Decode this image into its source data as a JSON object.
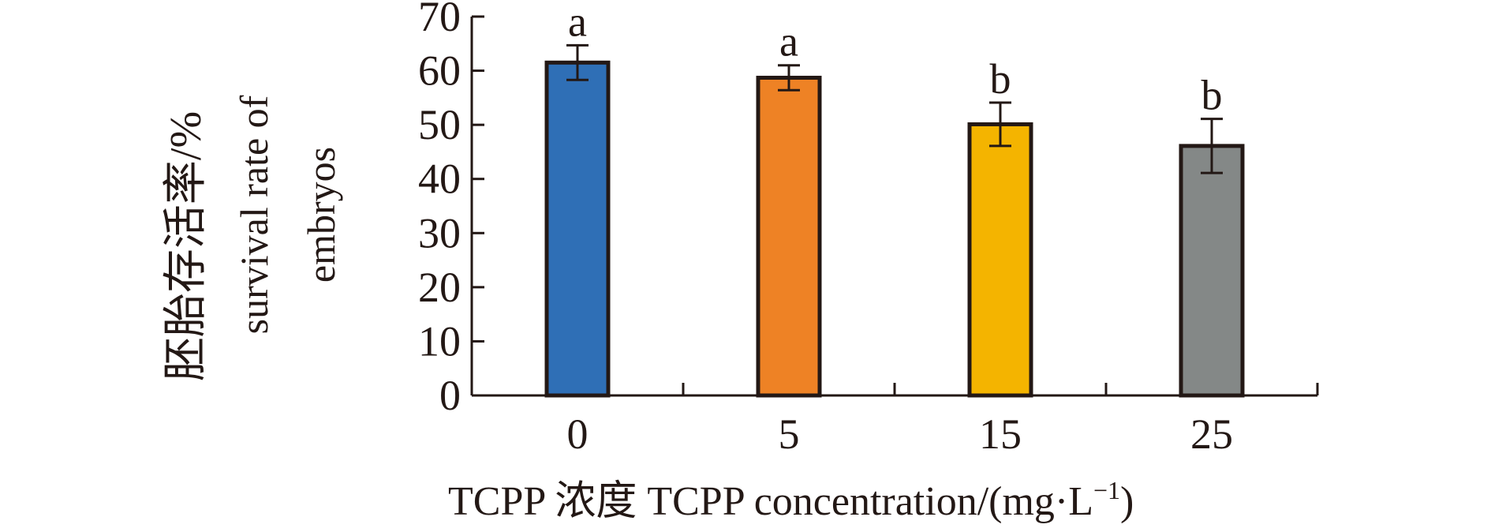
{
  "chart_data": {
    "type": "bar",
    "categories": [
      "0",
      "5",
      "15",
      "25"
    ],
    "values": [
      61.5,
      58.7,
      50.1,
      46.1
    ],
    "errors": [
      3.2,
      2.3,
      4.0,
      5.0
    ],
    "significance": [
      "a",
      "a",
      "b",
      "b"
    ],
    "colors": [
      "#2f6fb6",
      "#ee8225",
      "#f4b400",
      "#848887"
    ],
    "ylim": [
      0,
      70
    ],
    "yticks": [
      "0",
      "10",
      "20",
      "30",
      "40",
      "50",
      "60",
      "70"
    ],
    "ylabel_zh": "胚胎存活率/%",
    "ylabel_en_line1": "survival rate of",
    "ylabel_en_line2": "embryos",
    "xlabel": "TCPP 浓度 TCPP concentration/(mg·L",
    "xlabel_sup": "−1",
    "xlabel_end": ")",
    "grid": false
  }
}
